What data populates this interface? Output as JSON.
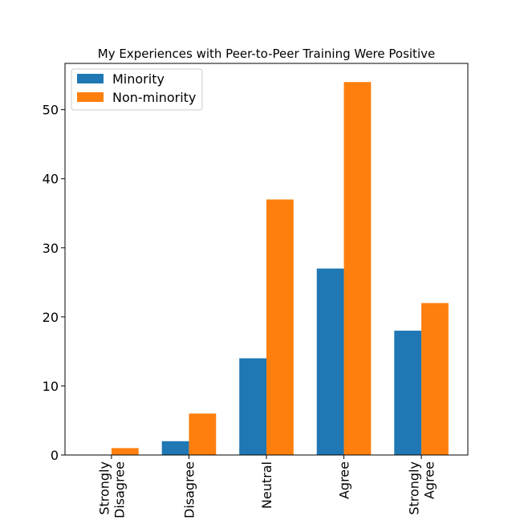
{
  "chart_data": {
    "type": "bar",
    "title": "My Experiences with Peer-to-Peer Training Were Positive",
    "xlabel": "",
    "ylabel": "",
    "categories": [
      [
        "Strongly",
        "Disagree"
      ],
      [
        "Disagree"
      ],
      [
        "Neutral"
      ],
      [
        "Agree"
      ],
      [
        "Strongly",
        "Agree"
      ]
    ],
    "series": [
      {
        "name": "Minority",
        "color": "#1f77b4",
        "values": [
          0,
          2,
          14,
          27,
          18
        ]
      },
      {
        "name": "Non-minority",
        "color": "#ff7f0e",
        "values": [
          1,
          6,
          37,
          54,
          22
        ]
      }
    ],
    "ylim": [
      0,
      56.7
    ],
    "yticks": [
      0,
      10,
      20,
      30,
      40,
      50
    ],
    "grid": false,
    "legend_position": "top-left"
  }
}
